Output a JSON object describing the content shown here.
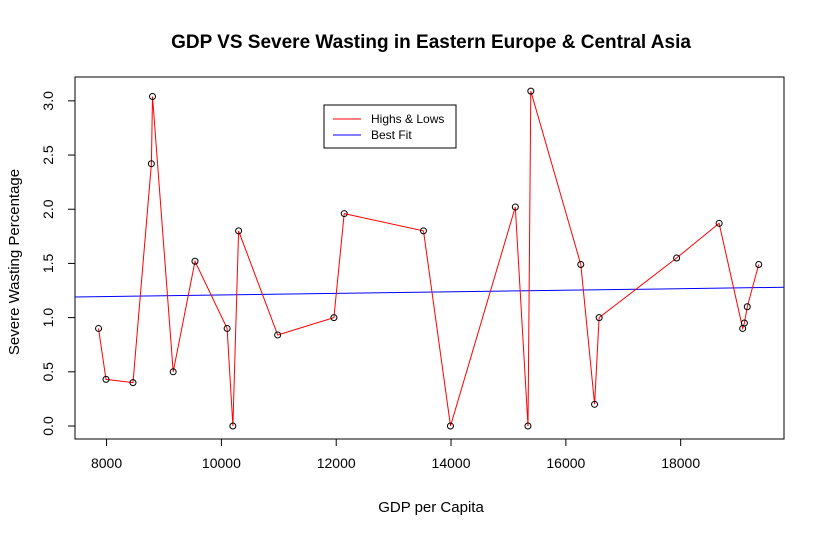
{
  "chart_data": {
    "type": "line",
    "title": "GDP VS Severe Wasting in Eastern Europe & Central Asia",
    "xlabel": "GDP per Capita",
    "ylabel": "Severe Wasting Percentage",
    "xlim": [
      7450,
      19800
    ],
    "ylim": [
      -0.12,
      3.22
    ],
    "xticks": [
      8000,
      10000,
      12000,
      14000,
      16000,
      18000
    ],
    "xtick_labels": [
      "8000",
      "10000",
      "12000",
      "14000",
      "16000",
      "18000"
    ],
    "yticks": [
      0,
      0.5,
      1,
      1.5,
      2,
      2.5,
      3
    ],
    "ytick_labels": [
      "0.0",
      "0.5",
      "1.0",
      "1.5",
      "2.0",
      "2.5",
      "3.0"
    ],
    "grid": false,
    "legend_position": "top-center",
    "series": [
      {
        "name": "Highs & Lows",
        "color": "#ff0000",
        "markers": "open-circle",
        "x": [
          7860,
          7990,
          8460,
          8780,
          8800,
          9160,
          9540,
          10100,
          10200,
          10300,
          10980,
          11960,
          12140,
          13520,
          13990,
          15120,
          15340,
          15390,
          16260,
          16500,
          16580,
          17930,
          18670,
          19080,
          19110,
          19160,
          19360
        ],
        "y": [
          0.9,
          0.43,
          0.4,
          2.42,
          3.04,
          0.5,
          1.52,
          0.9,
          0.0,
          1.8,
          0.84,
          1.0,
          1.96,
          1.8,
          0.0,
          2.02,
          0.0,
          3.09,
          1.49,
          0.2,
          1.0,
          1.55,
          1.87,
          0.9,
          0.95,
          1.1,
          1.49
        ]
      },
      {
        "name": "Best Fit",
        "color": "#0000ff",
        "x": [
          7450,
          19800
        ],
        "y": [
          1.19,
          1.28
        ]
      }
    ]
  }
}
